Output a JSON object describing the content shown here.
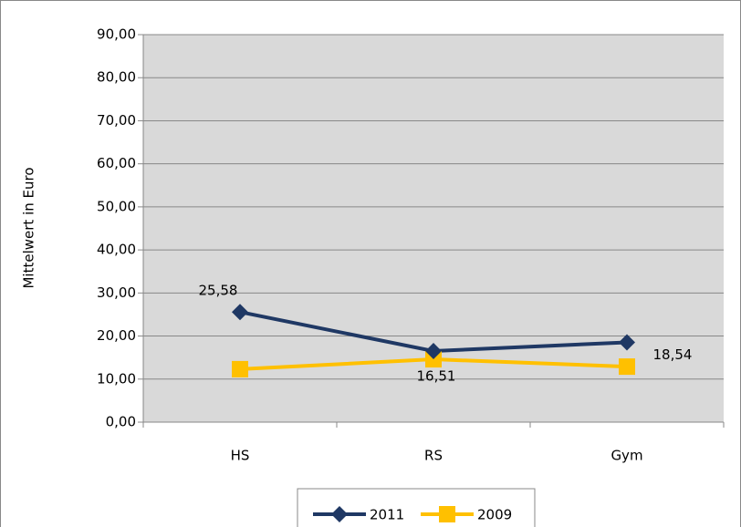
{
  "chart_data": {
    "type": "line",
    "y_label": "Mittelwert in Euro",
    "categories": [
      "HS",
      "RS",
      "Gym"
    ],
    "series": [
      {
        "name": "2011",
        "color": "#1f3864",
        "marker": "diamond",
        "values": [
          25.58,
          16.51,
          18.54
        ],
        "value_labels": [
          "25,58",
          "16,51",
          "18,54"
        ]
      },
      {
        "name": "2009",
        "color": "#ffc000",
        "marker": "square",
        "values": [
          12.3,
          14.6,
          12.9
        ]
      }
    ],
    "ylim": [
      0,
      90
    ],
    "yticks": [
      {
        "value": 0,
        "label": "0,00"
      },
      {
        "value": 10,
        "label": "10,00"
      },
      {
        "value": 20,
        "label": "20,00"
      },
      {
        "value": 30,
        "label": "30,00"
      },
      {
        "value": 40,
        "label": "40,00"
      },
      {
        "value": 50,
        "label": "50,00"
      },
      {
        "value": 60,
        "label": "60,00"
      },
      {
        "value": 70,
        "label": "70,00"
      },
      {
        "value": 80,
        "label": "80,00"
      },
      {
        "value": 90,
        "label": "90,00"
      }
    ],
    "grid": true,
    "legend": "bottom"
  }
}
